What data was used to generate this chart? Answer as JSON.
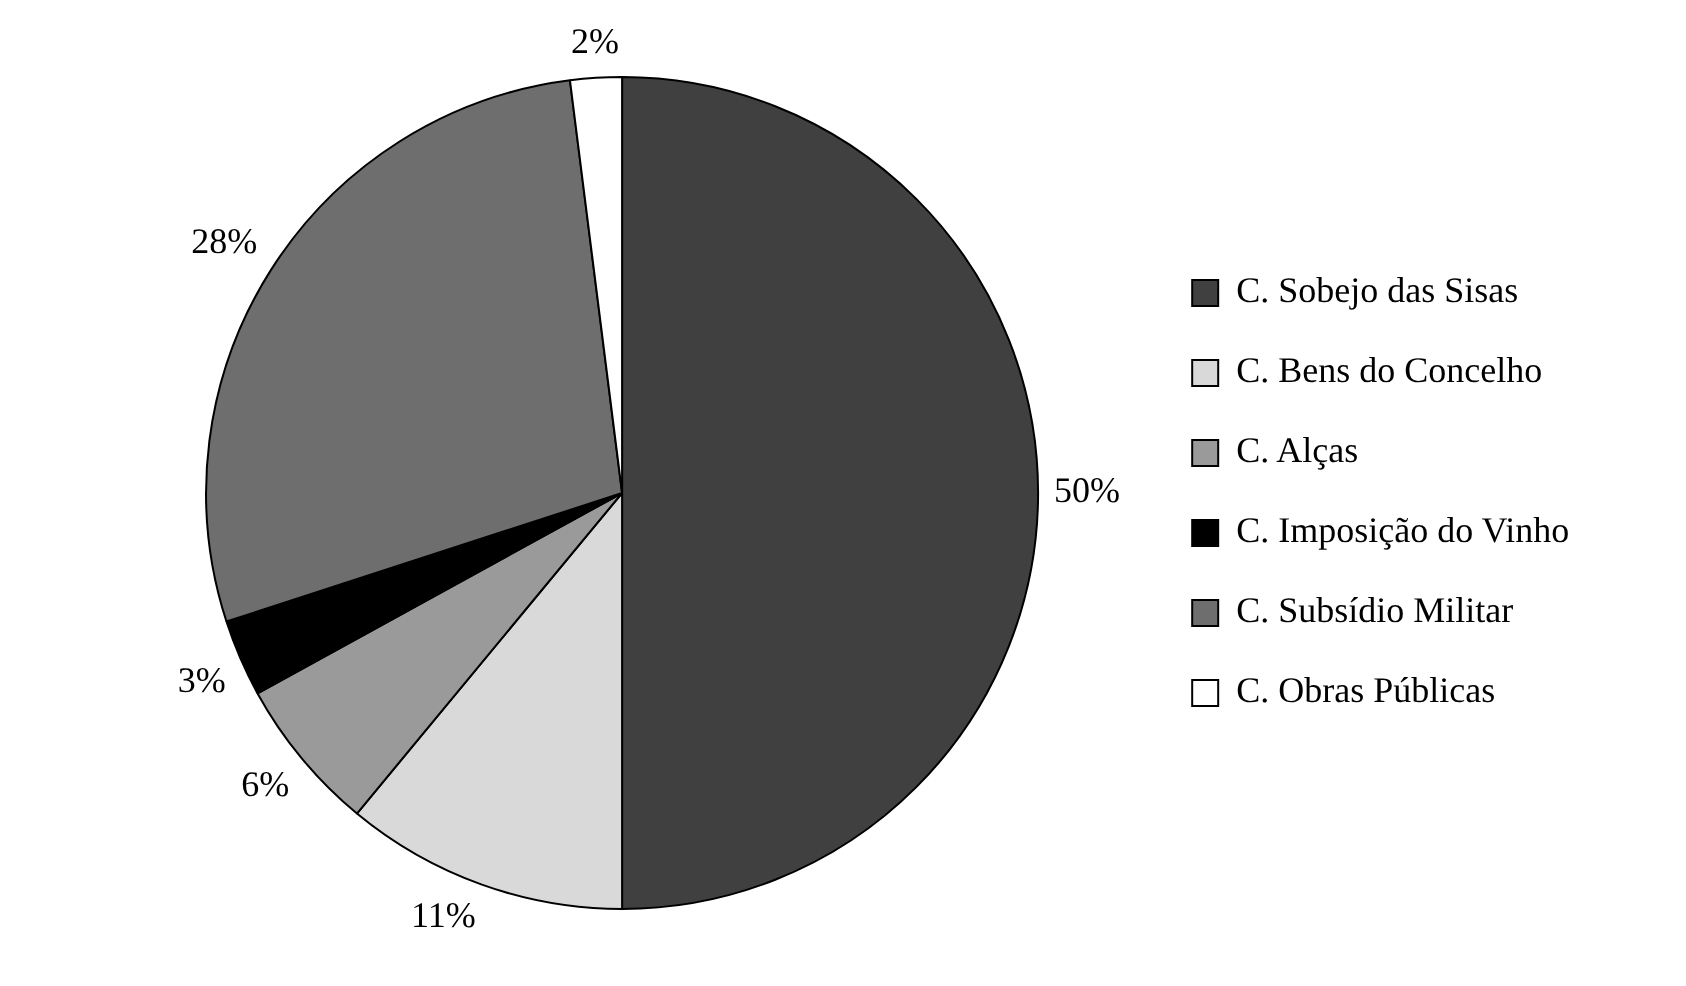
{
  "chart_data": {
    "type": "pie",
    "categories": [
      "C. Sobejo das Sisas",
      "C. Bens do Concelho",
      "C. Alças",
      "C. Imposição do Vinho",
      "C. Subsídio Militar",
      "C. Obras Públicas"
    ],
    "values": [
      50,
      11,
      6,
      3,
      28,
      2
    ],
    "colors": [
      "#404040",
      "#d9d9d9",
      "#9a9a9a",
      "#000000",
      "#6e6e6e",
      "#ffffff"
    ],
    "value_labels": [
      "50%",
      "11%",
      "6%",
      "3%",
      "28%",
      "2%"
    ],
    "legend": "right"
  }
}
